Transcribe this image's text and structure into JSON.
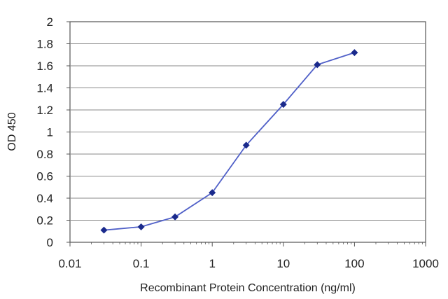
{
  "chart_data": {
    "type": "line",
    "title": "",
    "xlabel": "Recombinant Protein Concentration (ng/ml)",
    "ylabel": "OD 450",
    "x_scale": "log",
    "xlim": [
      0.01,
      1000
    ],
    "ylim": [
      0,
      2
    ],
    "x_ticks": [
      0.01,
      0.1,
      1,
      10,
      100,
      1000
    ],
    "x_tick_labels": [
      "0.01",
      "0.1",
      "1",
      "10",
      "100",
      "1000"
    ],
    "y_ticks": [
      0,
      0.2,
      0.4,
      0.6,
      0.8,
      1,
      1.2,
      1.4,
      1.6,
      1.8,
      2
    ],
    "y_tick_labels": [
      "0",
      "0.2",
      "0.4",
      "0.6",
      "0.8",
      "1",
      "1.2",
      "1.4",
      "1.6",
      "1.8",
      "2"
    ],
    "grid": "horizontal",
    "legend": "none",
    "series": [
      {
        "x": [
          0.03,
          0.1,
          0.3,
          1,
          3,
          10,
          30,
          100
        ],
        "y": [
          0.11,
          0.14,
          0.23,
          0.45,
          0.88,
          1.25,
          1.61,
          1.72
        ],
        "color": "#2b3fa8",
        "marker": "diamond"
      }
    ],
    "colors": {
      "line": "#5060c8",
      "marker": "#1a2a8c",
      "grid": "#8a8a8a",
      "axis": "#555555"
    }
  }
}
